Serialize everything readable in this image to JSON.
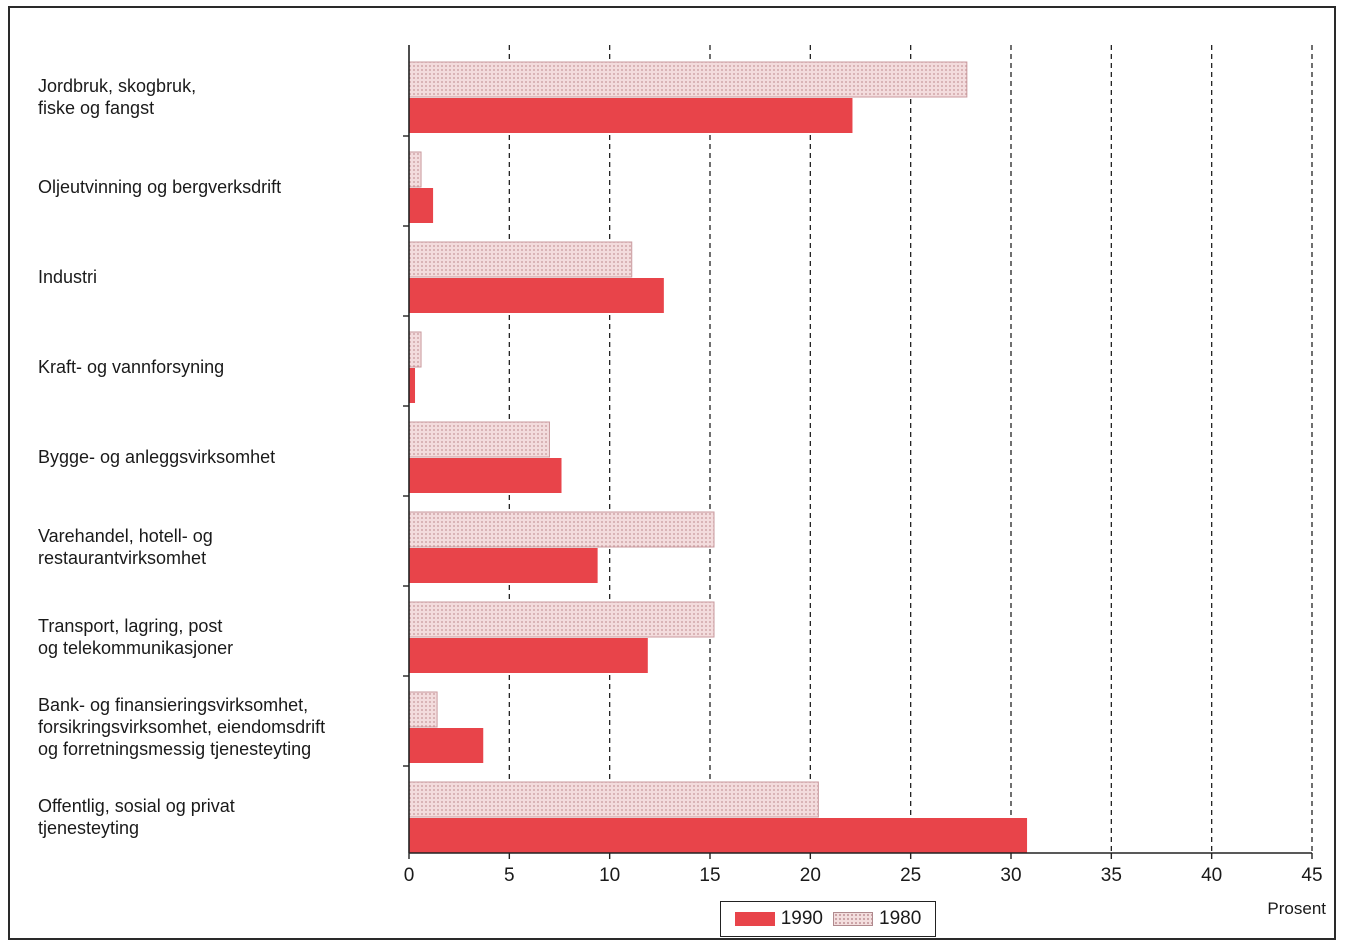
{
  "chart_data": {
    "type": "bar",
    "orientation": "horizontal",
    "categories": [
      [
        "Jordbruk, skogbruk,",
        "fiske og fangst"
      ],
      [
        "Oljeutvinning og bergverksdrift"
      ],
      [
        "Industri"
      ],
      [
        "Kraft- og vannforsyning"
      ],
      [
        "Bygge- og anleggsvirksomhet"
      ],
      [
        "Varehandel, hotell- og",
        "restaurantvirksomhet"
      ],
      [
        "Transport, lagring, post",
        "og telekommunikasjoner"
      ],
      [
        "Bank- og finansieringsvirksomhet,",
        "forsikringsvirksomhet, eiendomsdrift",
        "og forretningsmessig tjenesteyting"
      ],
      [
        "Offentlig, sosial og privat",
        "tjenesteyting"
      ]
    ],
    "series": [
      {
        "name": "1980",
        "values": [
          27.8,
          0.6,
          11.1,
          0.6,
          7.0,
          15.2,
          15.2,
          1.4,
          20.4
        ],
        "color": "#f2d6d8"
      },
      {
        "name": "1990",
        "values": [
          22.1,
          1.2,
          12.7,
          0.3,
          7.6,
          9.4,
          11.9,
          3.7,
          30.8
        ],
        "color": "#e8444a"
      }
    ],
    "xlim": [
      0,
      45
    ],
    "xticks": [
      "0",
      "5",
      "10",
      "15",
      "20",
      "25",
      "30",
      "35",
      "40",
      "45"
    ],
    "xlabel": "Prosent",
    "grid": "vertical dashed",
    "legend_position": "bottom-right"
  },
  "legend": {
    "label_1990": "1990",
    "label_1980": "1980"
  }
}
